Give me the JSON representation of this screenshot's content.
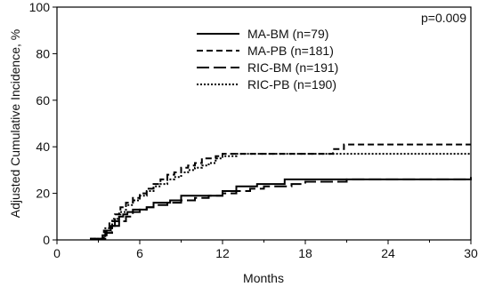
{
  "chart_data": {
    "type": "line",
    "title": "",
    "xlabel": "Months",
    "ylabel": "Adjusted Cumulative Incidence, %",
    "xlim": [
      0,
      30
    ],
    "ylim": [
      0,
      100
    ],
    "xticks": [
      0,
      6,
      12,
      18,
      24,
      30
    ],
    "yticks": [
      0,
      20,
      40,
      60,
      80,
      100
    ],
    "xtick_labels": [
      "0",
      "6",
      "12",
      "18",
      "24",
      "30"
    ],
    "ytick_labels": [
      "0",
      "20",
      "40",
      "60",
      "80",
      "100"
    ],
    "annotation": "p=0.009",
    "grid": false,
    "legend_position": "top-center",
    "series": [
      {
        "name": "MA-BM (n=79)",
        "dash": "solid",
        "color": "#000000",
        "x": [
          2.4,
          3.0,
          3.3,
          3.6,
          3.9,
          4.2,
          4.5,
          4.8,
          5.1,
          5.5,
          6.0,
          6.5,
          7.0,
          7.5,
          8.2,
          9.0,
          10.0,
          11.0,
          12.0,
          13.0,
          14.5,
          16.0,
          16.5,
          17.5,
          20.0,
          24.0,
          30.0
        ],
        "y": [
          0.5,
          0.5,
          2,
          4,
          6,
          8,
          10,
          11,
          12,
          13,
          13,
          14,
          16,
          16,
          17,
          19,
          19,
          19,
          21,
          23,
          24,
          24,
          26,
          26,
          26,
          26,
          26
        ]
      },
      {
        "name": "MA-PB (n=181)",
        "dash": "short-dash",
        "color": "#000000",
        "x": [
          2.4,
          3.0,
          3.4,
          3.8,
          4.2,
          4.6,
          5.0,
          5.5,
          6.0,
          6.5,
          7.0,
          7.5,
          8.0,
          8.5,
          9.0,
          9.5,
          10.0,
          10.5,
          11.0,
          11.5,
          12.0,
          13.0,
          16.0,
          19.0,
          20.0,
          20.8,
          24.0,
          30.0
        ],
        "y": [
          0.5,
          0.5,
          4,
          8,
          11,
          14,
          16,
          18,
          20,
          22,
          24,
          26,
          28,
          29,
          31,
          32,
          33,
          35,
          35,
          36,
          37,
          37,
          37,
          37,
          39,
          41,
          41,
          41
        ]
      },
      {
        "name": "RIC-BM (n=191)",
        "dash": "long-dash",
        "color": "#000000",
        "x": [
          2.4,
          3.0,
          3.5,
          4.0,
          4.5,
          5.0,
          5.5,
          6.0,
          6.5,
          7.0,
          8.0,
          9.0,
          10.0,
          11.0,
          12.0,
          13.0,
          14.0,
          15.0,
          17.0,
          18.0,
          21.0,
          24.0,
          30.0
        ],
        "y": [
          0.5,
          0.5,
          3,
          6,
          8,
          10,
          12,
          13,
          14,
          15,
          16,
          17,
          18,
          19,
          20,
          21,
          22,
          23,
          24,
          25,
          26,
          26,
          27
        ]
      },
      {
        "name": "RIC-PB (n=190)",
        "dash": "dotted",
        "color": "#000000",
        "x": [
          2.4,
          3.0,
          3.5,
          4.0,
          4.5,
          5.0,
          5.5,
          6.0,
          6.5,
          7.0,
          7.5,
          8.0,
          8.5,
          9.0,
          9.5,
          10.0,
          10.5,
          11.0,
          11.5,
          12.0,
          13.0,
          18.0,
          24.0,
          30.0
        ],
        "y": [
          0.5,
          0.5,
          5,
          9,
          12,
          15,
          17,
          19,
          21,
          23,
          24,
          26,
          27,
          29,
          30,
          31,
          32,
          33,
          35,
          36,
          37,
          37,
          37,
          37
        ]
      }
    ]
  }
}
